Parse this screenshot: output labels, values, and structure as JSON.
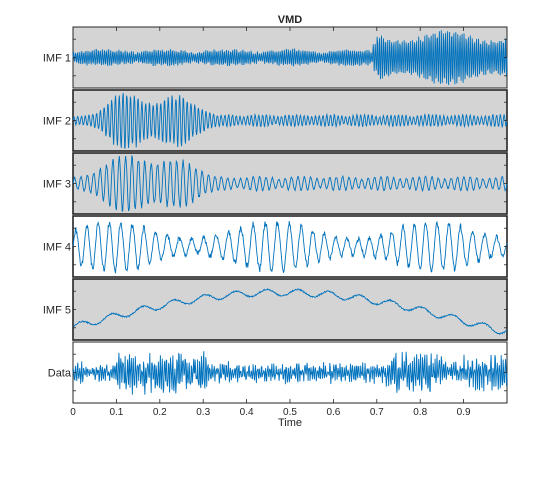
{
  "chart_data": {
    "type": "line",
    "title": "VMD",
    "xlabel": "Time",
    "xlim": [
      0,
      1
    ],
    "x_ticks": [
      "0",
      "0.1",
      "0.2",
      "0.3",
      "0.4",
      "0.5",
      "0.6",
      "0.7",
      "0.8",
      "0.9"
    ],
    "x_tick_values": [
      0,
      0.1,
      0.2,
      0.3,
      0.4,
      0.5,
      0.6,
      0.7,
      0.8,
      0.9
    ],
    "line_color": "#0072bd",
    "shaded_background": "#d4d4d4",
    "series": [
      {
        "name": "IMF 1",
        "shaded": true,
        "ylim": [
          -1,
          1
        ]
      },
      {
        "name": "IMF 2",
        "shaded": true,
        "ylim": [
          -1,
          1
        ]
      },
      {
        "name": "IMF 3",
        "shaded": true,
        "ylim": [
          -1,
          1
        ]
      },
      {
        "name": "IMF 4",
        "shaded": false,
        "ylim": [
          -1,
          1
        ]
      },
      {
        "name": "IMF 5",
        "shaded": true,
        "ylim": [
          -1,
          1
        ]
      },
      {
        "name": "Data",
        "shaded": false,
        "ylim": [
          -1,
          1
        ]
      }
    ]
  }
}
